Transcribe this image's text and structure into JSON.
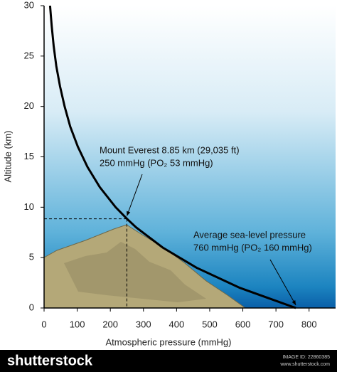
{
  "chart_data": {
    "type": "line",
    "xlabel": "Atmospheric pressure (mmHg)",
    "ylabel": "Altitude (km)",
    "x": [
      760,
      591,
      460,
      358,
      278,
      250,
      216,
      168,
      131,
      102,
      79,
      62,
      48,
      37,
      29,
      23,
      18
    ],
    "values": [
      0,
      2,
      4,
      6,
      8,
      8.85,
      10,
      12,
      14,
      16,
      18,
      20,
      22,
      24,
      26,
      28,
      30
    ],
    "color": "#000000",
    "xlim": [
      0,
      880
    ],
    "ylim": [
      0,
      30
    ],
    "xticks": [
      0,
      100,
      200,
      300,
      400,
      500,
      600,
      700,
      800
    ],
    "yticks": [
      0,
      5,
      10,
      15,
      20,
      25,
      30
    ],
    "annotations": [
      {
        "lines": [
          "Mount Everest 8.85 km (29,035 ft)",
          "250 mmHg (PO₂ 53 mmHg)"
        ],
        "x": 250,
        "y": 8.85
      },
      {
        "lines": [
          "Average sea-level pressure",
          "760 mmHg (PO₂ 160 mmHg)"
        ],
        "x": 760,
        "y": 0
      }
    ]
  },
  "footer": {
    "brand": "shutterstock",
    "image_id": "IMAGE ID: 22860385",
    "site": "www.shutterstock.com"
  }
}
